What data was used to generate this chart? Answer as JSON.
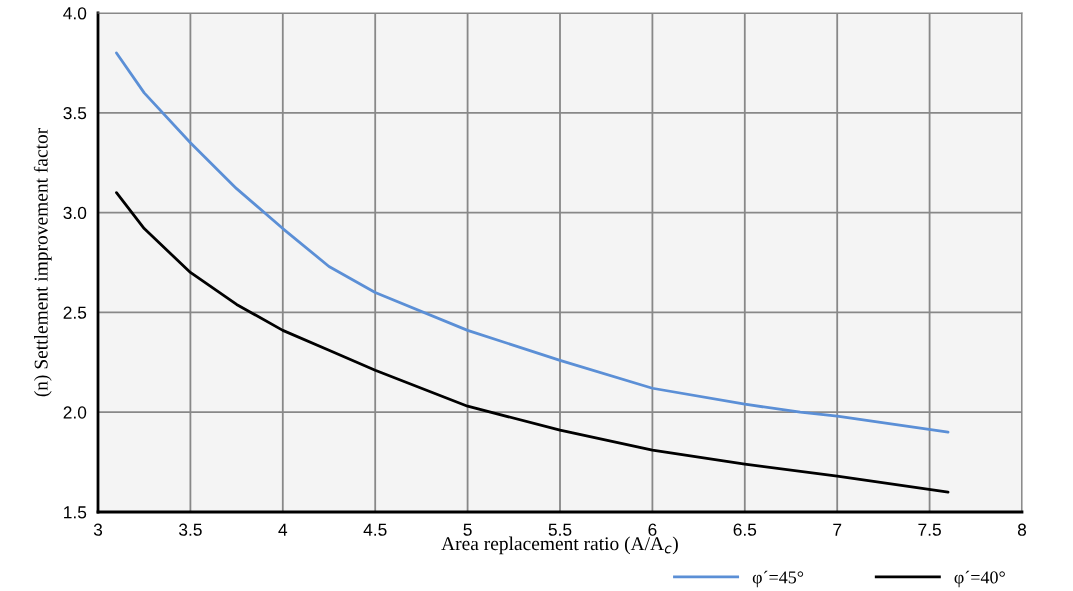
{
  "chart_data": {
    "type": "line",
    "xlabel": "Area replacement ratio (A/A$_{c}$)",
    "ylabel": "(n) Settlement improvement factor",
    "xlim": [
      3,
      8
    ],
    "xticks": [
      3,
      3.5,
      4,
      4.5,
      5,
      5.5,
      6,
      6.5,
      7,
      7.5,
      8
    ],
    "ylim": [
      1.5,
      4.0
    ],
    "yticks": [
      {
        "value": 1.5,
        "label": "1.5"
      },
      {
        "value": 2.0,
        "label": "2.0"
      },
      {
        "value": 2.5,
        "label": "2.5"
      },
      {
        "value": 3.0,
        "label": "3.0"
      },
      {
        "value": 3.5,
        "label": "3.5"
      },
      {
        "value": 4.0,
        "label": "4.0"
      }
    ],
    "grid": true,
    "legend": "bottom",
    "line_style": "solid",
    "marker": "none",
    "series": [
      {
        "name": "φ´=45°",
        "color": "#5b8fd6",
        "x": [
          3.1,
          3.25,
          3.5,
          3.75,
          4,
          4.25,
          4.5,
          5,
          5.5,
          6,
          6.5,
          6.8,
          7,
          7.6
        ],
        "values": [
          3.8,
          3.6,
          3.35,
          3.12,
          2.92,
          2.73,
          2.6,
          2.41,
          2.26,
          2.12,
          2.04,
          2.0,
          1.98,
          1.9
        ]
      },
      {
        "name": "φ´=40°",
        "color": "#000000",
        "x": [
          3.1,
          3.25,
          3.5,
          3.75,
          4,
          4.25,
          4.5,
          5,
          5.5,
          6,
          6.5,
          7,
          7.6
        ],
        "values": [
          3.1,
          2.92,
          2.7,
          2.54,
          2.41,
          2.31,
          2.21,
          2.03,
          1.91,
          1.81,
          1.74,
          1.68,
          1.6
        ]
      }
    ]
  }
}
